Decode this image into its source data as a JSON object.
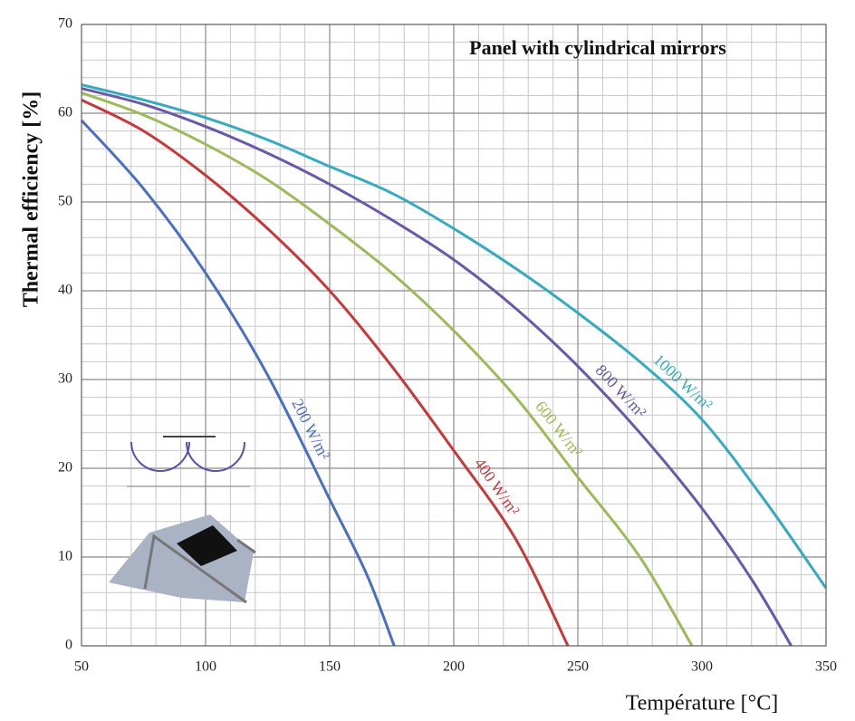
{
  "chart_data": {
    "type": "line",
    "title": "Panel with cylindrical mirrors",
    "xlabel": "Température [°C]",
    "ylabel": "Thermal efficiency [%]",
    "xlim": [
      50,
      350
    ],
    "xticks": [
      50,
      100,
      150,
      200,
      250,
      300,
      350
    ],
    "ylim": [
      0,
      70
    ],
    "yticks": [
      0,
      10,
      20,
      30,
      40,
      50,
      60,
      70
    ],
    "grid": true,
    "minor_grid": true,
    "series": [
      {
        "name": "200 W/m²",
        "color": "#4a6fc1",
        "x": [
          50,
          75,
          100,
          125,
          150,
          165,
          176
        ],
        "values": [
          59.2,
          51.5,
          42,
          30.5,
          16.5,
          8,
          0
        ]
      },
      {
        "name": "400 W/m²",
        "color": "#c8383a",
        "x": [
          50,
          75,
          100,
          125,
          150,
          175,
          200,
          225,
          246
        ],
        "values": [
          61.5,
          58,
          53,
          47,
          40,
          31.5,
          22,
          12,
          0
        ]
      },
      {
        "name": "600 W/m²",
        "color": "#9bbb59",
        "x": [
          50,
          75,
          100,
          125,
          150,
          175,
          200,
          225,
          250,
          275,
          296
        ],
        "values": [
          62.3,
          59.8,
          56.5,
          52.5,
          47.5,
          42,
          35.5,
          28,
          19,
          10,
          0
        ]
      },
      {
        "name": "800 W/m²",
        "color": "#6a58a8",
        "x": [
          50,
          75,
          100,
          125,
          150,
          175,
          200,
          225,
          250,
          275,
          300,
          320,
          336
        ],
        "values": [
          62.8,
          61,
          58.5,
          55.5,
          52,
          48,
          43.5,
          38,
          31.5,
          24,
          15.5,
          7.5,
          0
        ]
      },
      {
        "name": "1000 W/m²",
        "color": "#35abc0",
        "x": [
          50,
          75,
          100,
          125,
          150,
          175,
          200,
          225,
          250,
          275,
          300,
          325,
          350
        ],
        "values": [
          63.2,
          61.5,
          59.5,
          57,
          54,
          51,
          47,
          42.5,
          37.5,
          32,
          25.5,
          16.5,
          6.5
        ]
      }
    ]
  }
}
